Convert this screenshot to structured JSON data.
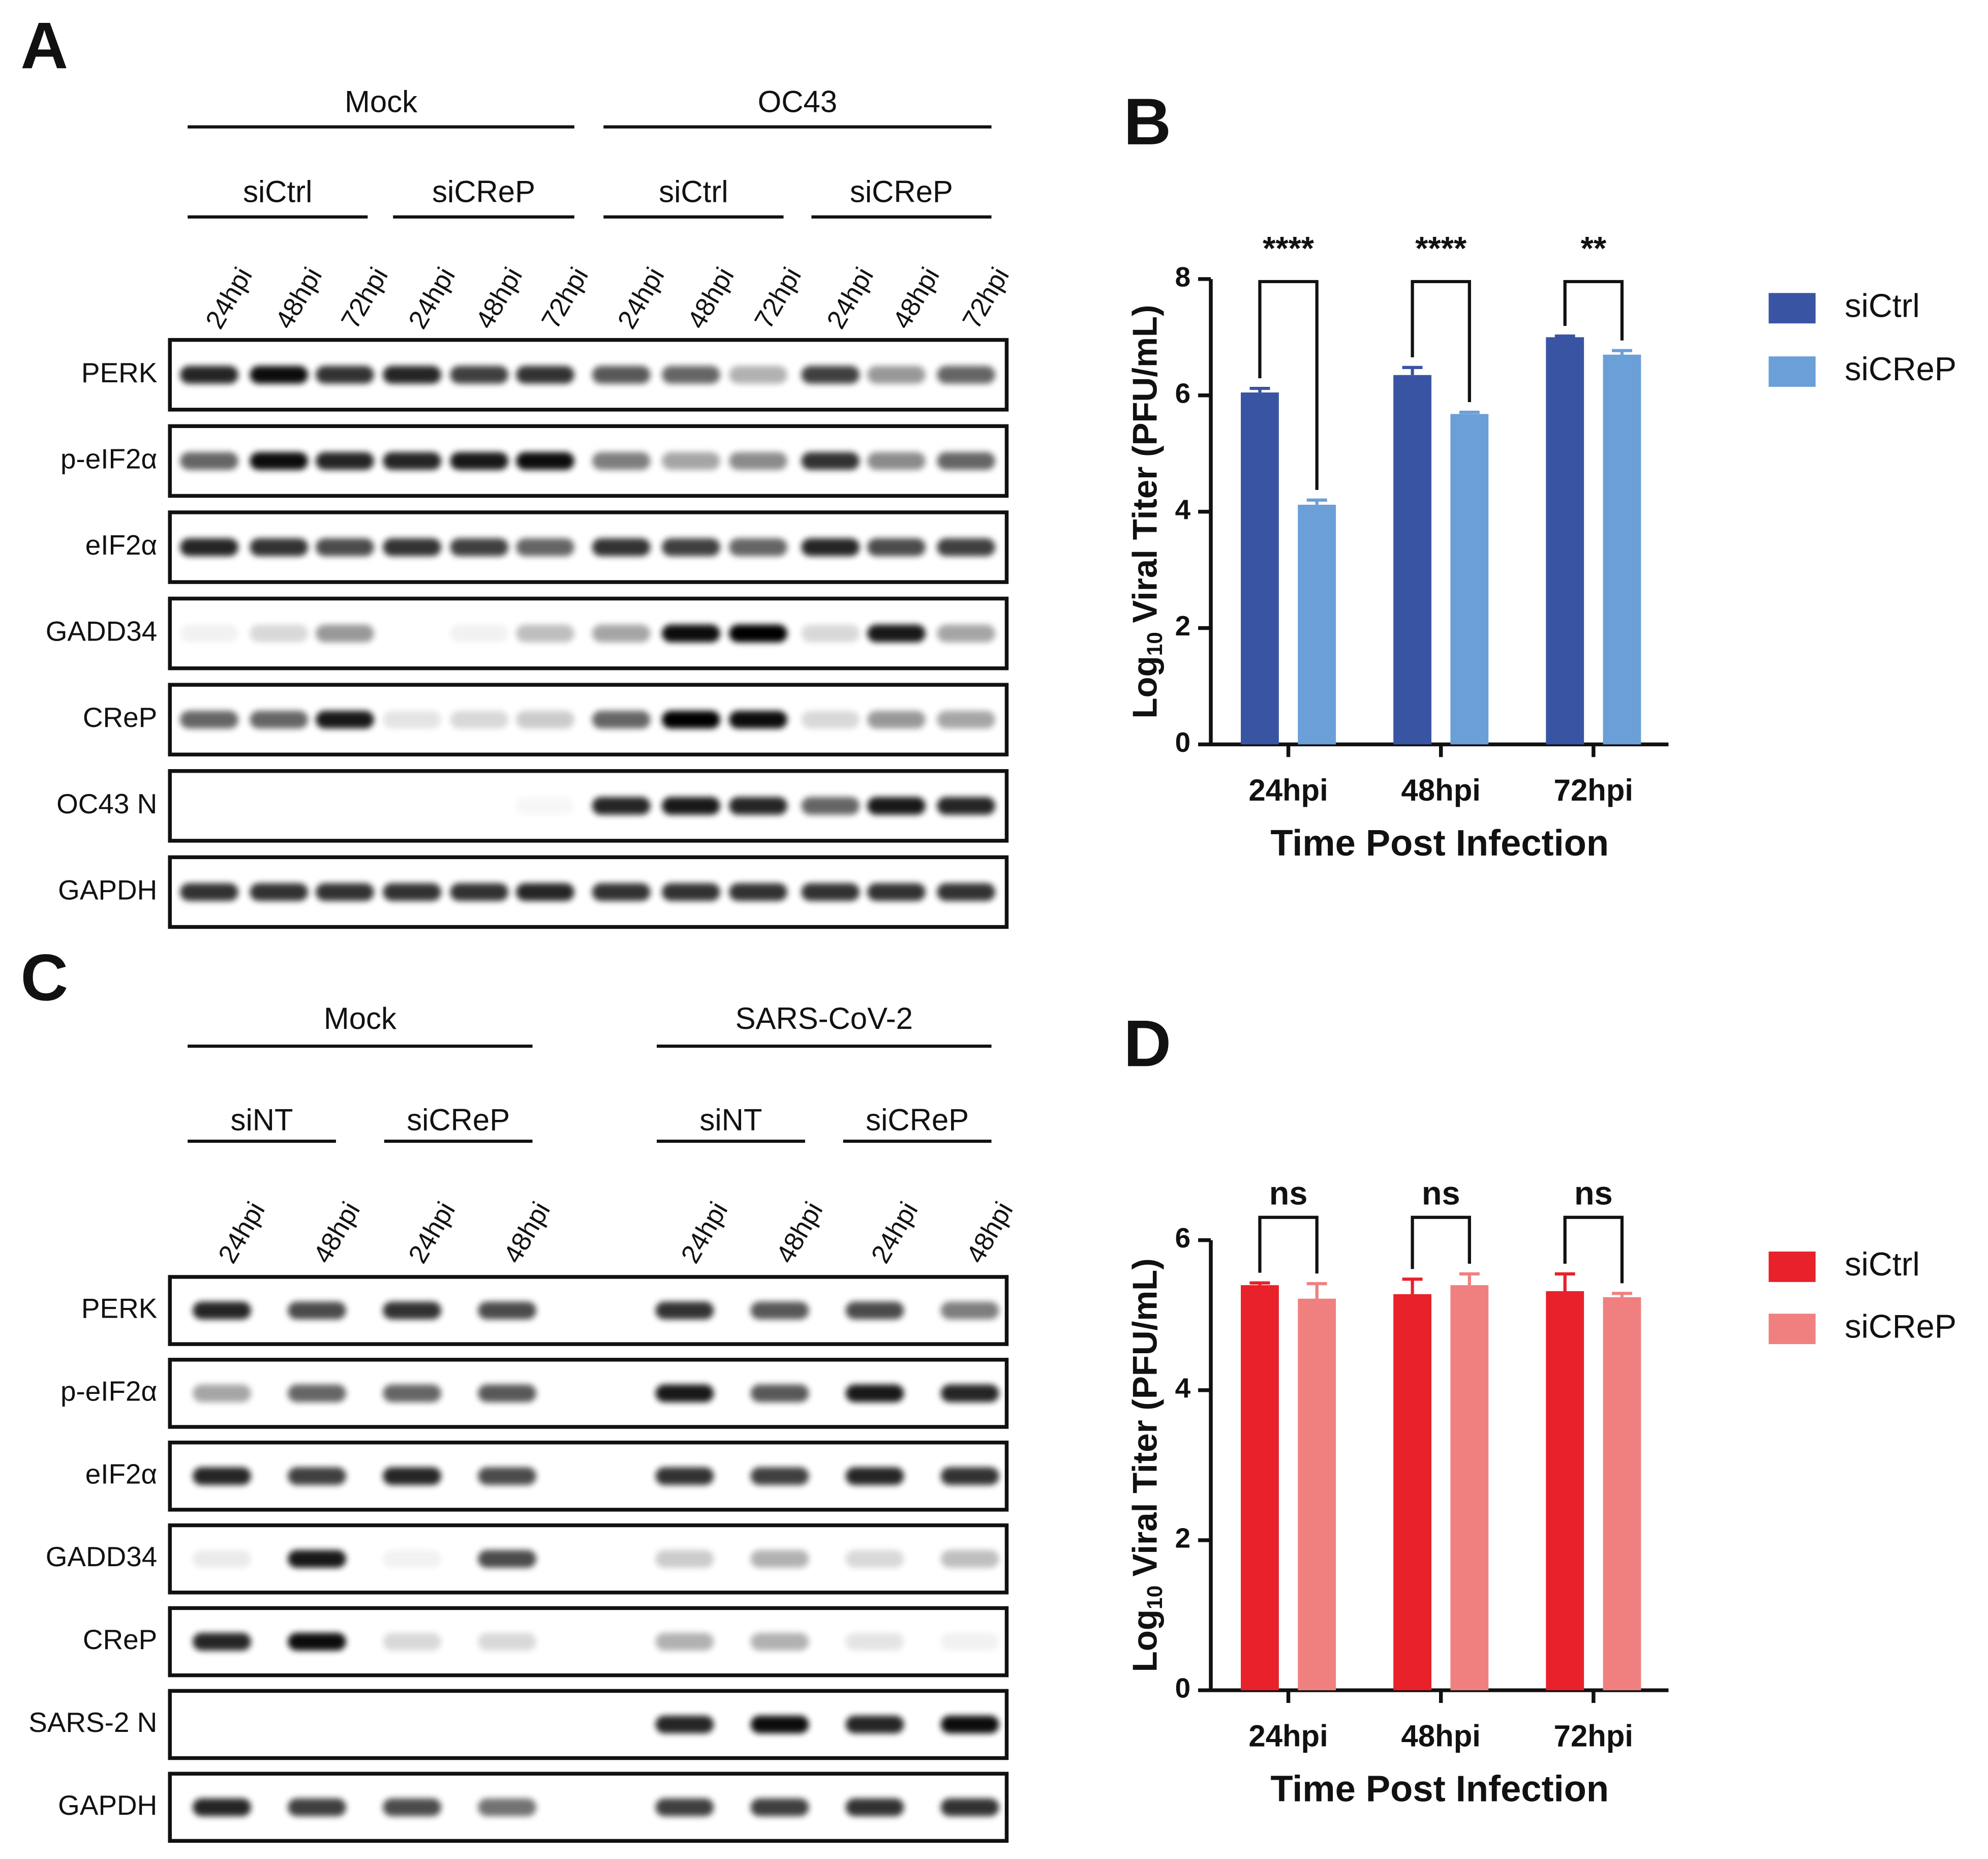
{
  "panel_labels": [
    "A",
    "B",
    "C",
    "D"
  ],
  "blots": [
    {
      "groups": [
        {
          "label": "Mock",
          "subgroups": [
            {
              "label": "siCtrl",
              "lanes": [
                "24hpi",
                "48hpi",
                "72hpi"
              ]
            },
            {
              "label": "siCReP",
              "lanes": [
                "24hpi",
                "48hpi",
                "72hpi"
              ]
            }
          ]
        },
        {
          "label": "OC43",
          "subgroups": [
            {
              "label": "siCtrl",
              "lanes": [
                "24hpi",
                "48hpi",
                "72hpi"
              ]
            },
            {
              "label": "siCReP",
              "lanes": [
                "24hpi",
                "48hpi",
                "72hpi"
              ]
            }
          ]
        }
      ],
      "rows": [
        "PERK",
        "p-eIF2α",
        "eIF2α",
        "GADD34",
        "CReP",
        "OC43 N",
        "GAPDH"
      ]
    },
    {
      "groups": [
        {
          "label": "Mock",
          "subgroups": [
            {
              "label": "siNT",
              "lanes": [
                "24hpi",
                "48hpi"
              ]
            },
            {
              "label": "siCReP",
              "lanes": [
                "24hpi",
                "48hpi"
              ]
            }
          ]
        },
        {
          "label": "SARS-CoV-2",
          "subgroups": [
            {
              "label": "siNT",
              "lanes": [
                "24hpi",
                "48hpi"
              ]
            },
            {
              "label": "siCReP",
              "lanes": [
                "24hpi",
                "48hpi"
              ]
            }
          ]
        }
      ],
      "rows": [
        "PERK",
        "p-eIF2α",
        "eIF2α",
        "GADD34",
        "CReP",
        "SARS-2 N",
        "GAPDH"
      ]
    }
  ],
  "chart_data": [
    {
      "type": "bar",
      "categories": [
        "24hpi",
        "48hpi",
        "72hpi"
      ],
      "series": [
        {
          "name": "siCtrl",
          "color": "#3a54a4",
          "values": [
            6.05,
            6.35,
            7.0
          ],
          "errors": [
            0.07,
            0.13,
            0.02
          ]
        },
        {
          "name": "siCReP",
          "color": "#6a9fd8",
          "values": [
            4.12,
            5.68,
            6.7
          ],
          "errors": [
            0.08,
            0.03,
            0.07
          ]
        }
      ],
      "significance": [
        "****",
        "****",
        "**"
      ],
      "ylim": [
        0,
        8
      ],
      "yticks": [
        0,
        2,
        4,
        6,
        8
      ],
      "ylabel_parts": [
        "Log",
        "10",
        "Viral Titer (PFU/mL)"
      ],
      "xlabel": "Time Post Infection",
      "legend": "right"
    },
    {
      "type": "bar",
      "categories": [
        "24hpi",
        "48hpi",
        "72hpi"
      ],
      "series": [
        {
          "name": "siCtrl",
          "color": "#e8212a",
          "values": [
            5.4,
            5.28,
            5.32
          ],
          "errors": [
            0.03,
            0.2,
            0.23
          ]
        },
        {
          "name": "siCReP",
          "color": "#f08080",
          "values": [
            5.22,
            5.4,
            5.24
          ],
          "errors": [
            0.2,
            0.15,
            0.05
          ]
        }
      ],
      "significance": [
        "ns",
        "ns",
        "ns"
      ],
      "ylim": [
        0,
        6
      ],
      "yticks": [
        0,
        2,
        4,
        6
      ],
      "ylabel_parts": [
        "Log",
        "10",
        "Viral Titer (PFU/mL)"
      ],
      "xlabel": "Time Post Infection",
      "legend": "right"
    }
  ]
}
